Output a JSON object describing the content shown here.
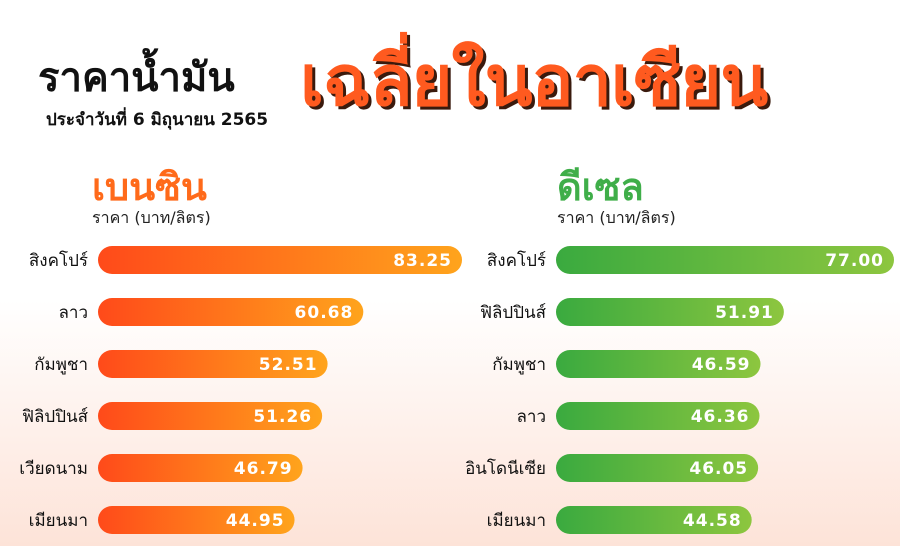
{
  "header": {
    "title_main": "ราคาน้ำมัน",
    "title_accent": "เฉลี่ยในอาเซียน",
    "subtitle": "ประจำวันที่ 6 มิถุนายน 2565"
  },
  "colors": {
    "accent": "#ff5a1f",
    "gasoline_start": "#ff4a1a",
    "gasoline_end": "#ffa41c",
    "diesel_start": "#3aaa3f",
    "diesel_end": "#8dc63f",
    "gasoline_title": "#ff6a1a",
    "diesel_title": "#3fae49"
  },
  "chart_data": [
    {
      "type": "bar",
      "orientation": "horizontal",
      "title": "เบนซิน",
      "subtitle": "ราคา (บาท/ลิตร)",
      "categories": [
        "สิงคโปร์",
        "ลาว",
        "กัมพูชา",
        "ฟิลิปปินส์",
        "เวียดนาม",
        "เมียนมา"
      ],
      "values": [
        83.25,
        60.68,
        52.51,
        51.26,
        46.79,
        44.95
      ],
      "value_labels": [
        "83.25",
        "60.68",
        "52.51",
        "51.26",
        "46.79",
        "44.95"
      ],
      "xlim": [
        0,
        83.25
      ]
    },
    {
      "type": "bar",
      "orientation": "horizontal",
      "title": "ดีเซล",
      "subtitle": "ราคา (บาท/ลิตร)",
      "categories": [
        "สิงคโปร์",
        "ฟิลิปปินส์",
        "กัมพูชา",
        "ลาว",
        "อินโดนีเซีย",
        "เมียนมา"
      ],
      "values": [
        77.0,
        51.91,
        46.59,
        46.36,
        46.05,
        44.58
      ],
      "value_labels": [
        "77.00",
        "51.91",
        "46.59",
        "46.36",
        "46.05",
        "44.58"
      ],
      "xlim": [
        0,
        77.0
      ]
    }
  ]
}
